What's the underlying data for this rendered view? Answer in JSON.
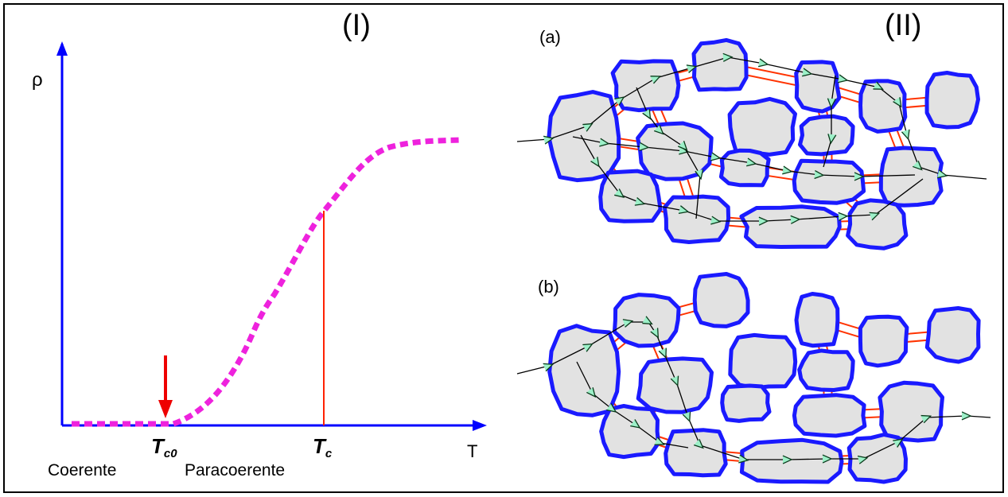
{
  "panel_I": {
    "label": "(I)",
    "y_axis_label": "ρ",
    "x_axis_label": "T",
    "tc0": {
      "main": "T",
      "sub": "c0"
    },
    "tc": {
      "main": "T",
      "sub": "c"
    },
    "regions": [
      "Coerente",
      "Paracoerente"
    ]
  },
  "panel_II": {
    "label": "(II)",
    "subpanels": [
      "(a)",
      "(b)"
    ]
  }
}
